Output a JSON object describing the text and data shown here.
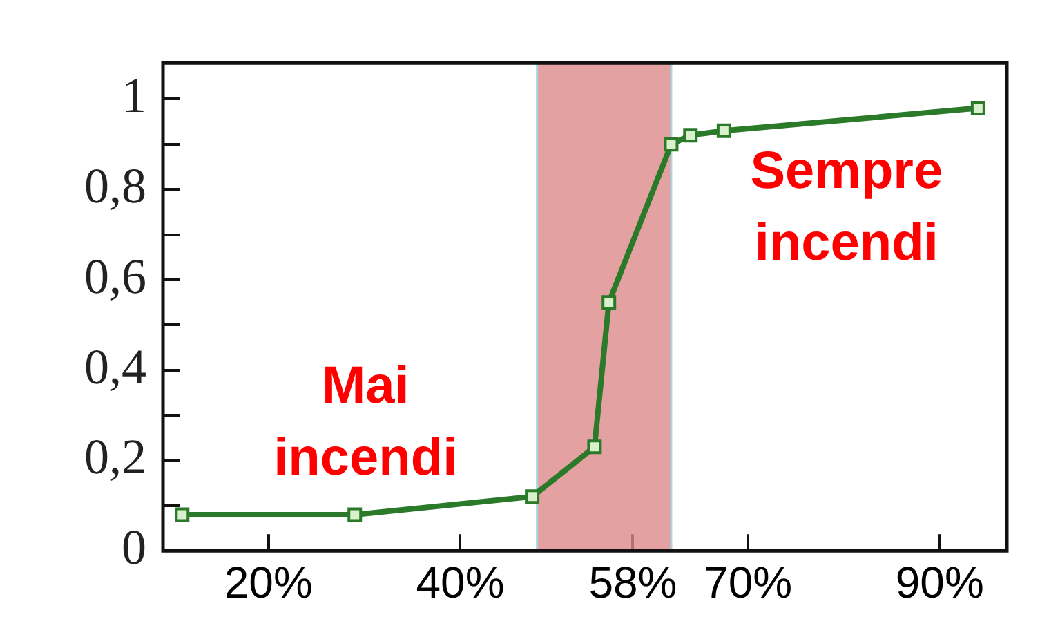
{
  "chart_data": {
    "type": "line",
    "x": [
      11,
      29,
      47.5,
      54,
      55.5,
      62,
      64,
      67.5,
      94
    ],
    "series": [
      {
        "color": "#2a7a2a",
        "values": [
          0.08,
          0.08,
          0.12,
          0.23,
          0.55,
          0.9,
          0.92,
          0.93,
          0.98
        ]
      }
    ],
    "xlim": [
      9,
      97
    ],
    "xticks": [
      {
        "value": 20,
        "label": "20%"
      },
      {
        "value": 40,
        "label": "40%"
      },
      {
        "value": 58,
        "label": "58%"
      },
      {
        "value": 70,
        "label": "70%"
      },
      {
        "value": 90,
        "label": "90%"
      }
    ],
    "ylim": [
      0,
      1.08
    ],
    "yticks": [
      0,
      {
        "value": 0.1,
        "label": null
      },
      {
        "value": 0.2,
        "label": "0,2"
      },
      {
        "value": 0.3,
        "label": null
      },
      {
        "value": 0.4,
        "label": "0,4"
      },
      {
        "value": 0.5,
        "label": null
      },
      {
        "value": 0.6,
        "label": "0,6"
      },
      {
        "value": 0.7,
        "label": null
      },
      {
        "value": 0.8,
        "label": "0,8"
      },
      {
        "value": 0.9,
        "label": null
      },
      1
    ],
    "bands": [
      {
        "axis": "x",
        "from": 48,
        "to": 62,
        "color": "#dc8a8a"
      }
    ],
    "annotations": [
      "Mai incendi",
      "Sempre incendi"
    ],
    "marker": "square",
    "grid": false,
    "legend": false
  }
}
